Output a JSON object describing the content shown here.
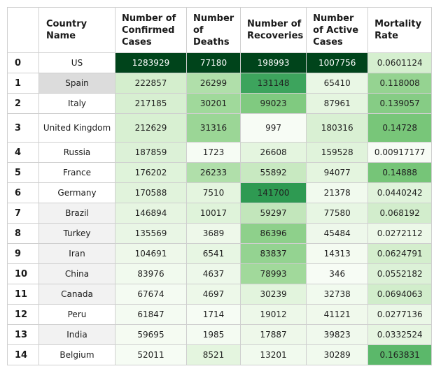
{
  "table": {
    "headers": {
      "index": "",
      "country": "Country Name",
      "confirmed": "Number of Confirmed Cases",
      "deaths": "Number of Deaths",
      "recoveries": "Number of Recoveries",
      "active": "Number of Active Cases",
      "mortality": "Mortality Rate"
    },
    "rows": [
      {
        "index": "0",
        "country": "US",
        "confirmed": "1283929",
        "deaths": "77180",
        "recoveries": "198993",
        "active": "1007756",
        "mortality": "0.0601124"
      },
      {
        "index": "1",
        "country": "Spain",
        "confirmed": "222857",
        "deaths": "26299",
        "recoveries": "131148",
        "active": "65410",
        "mortality": "0.118008"
      },
      {
        "index": "2",
        "country": "Italy",
        "confirmed": "217185",
        "deaths": "30201",
        "recoveries": "99023",
        "active": "87961",
        "mortality": "0.139057"
      },
      {
        "index": "3",
        "country": "United Kingdom",
        "confirmed": "212629",
        "deaths": "31316",
        "recoveries": "997",
        "active": "180316",
        "mortality": "0.14728"
      },
      {
        "index": "4",
        "country": "Russia",
        "confirmed": "187859",
        "deaths": "1723",
        "recoveries": "26608",
        "active": "159528",
        "mortality": "0.00917177"
      },
      {
        "index": "5",
        "country": "France",
        "confirmed": "176202",
        "deaths": "26233",
        "recoveries": "55892",
        "active": "94077",
        "mortality": "0.14888"
      },
      {
        "index": "6",
        "country": "Germany",
        "confirmed": "170588",
        "deaths": "7510",
        "recoveries": "141700",
        "active": "21378",
        "mortality": "0.0440242"
      },
      {
        "index": "7",
        "country": "Brazil",
        "confirmed": "146894",
        "deaths": "10017",
        "recoveries": "59297",
        "active": "77580",
        "mortality": "0.068192"
      },
      {
        "index": "8",
        "country": "Turkey",
        "confirmed": "135569",
        "deaths": "3689",
        "recoveries": "86396",
        "active": "45484",
        "mortality": "0.0272112"
      },
      {
        "index": "9",
        "country": "Iran",
        "confirmed": "104691",
        "deaths": "6541",
        "recoveries": "83837",
        "active": "14313",
        "mortality": "0.0624791"
      },
      {
        "index": "10",
        "country": "China",
        "confirmed": "83976",
        "deaths": "4637",
        "recoveries": "78993",
        "active": "346",
        "mortality": "0.0552182"
      },
      {
        "index": "11",
        "country": "Canada",
        "confirmed": "67674",
        "deaths": "4697",
        "recoveries": "30239",
        "active": "32738",
        "mortality": "0.0694063"
      },
      {
        "index": "12",
        "country": "Peru",
        "confirmed": "61847",
        "deaths": "1714",
        "recoveries": "19012",
        "active": "41121",
        "mortality": "0.0277136"
      },
      {
        "index": "13",
        "country": "India",
        "confirmed": "59695",
        "deaths": "1985",
        "recoveries": "17887",
        "active": "39823",
        "mortality": "0.0332524"
      },
      {
        "index": "14",
        "country": "Belgium",
        "confirmed": "52011",
        "deaths": "8521",
        "recoveries": "13201",
        "active": "30289",
        "mortality": "0.163831"
      }
    ]
  },
  "colors": {
    "country_cell_backgrounds": {
      "0": "#ffffff",
      "1": "#dcdcdc",
      "2": "#ffffff",
      "3": "#ffffff",
      "4": "#ffffff",
      "5": "#ffffff",
      "6": "#ffffff",
      "7": "#f2f2f2",
      "8": "#f2f2f2",
      "9": "#f2f2f2",
      "10": "#f2f2f2",
      "11": "#f2f2f2",
      "12": "#ffffff",
      "13": "#f2f2f2",
      "14": "#ffffff"
    },
    "heatmap": {
      "confirmed": [
        "#00441b",
        "#d4eecd",
        "#d7efd1",
        "#d8f0d2",
        "#dcf1d7",
        "#dff3da",
        "#e1f3dc",
        "#e6f5e1",
        "#e9f6e5",
        "#eef8ea",
        "#f1faee",
        "#f4fbf2",
        "#f4fbf2",
        "#f5fbf2",
        "#f6fcf4"
      ],
      "deaths": [
        "#00441b",
        "#b0dfaa",
        "#a0d99b",
        "#9bd696",
        "#f6fcf4",
        "#b0dfaa",
        "#e4f5df",
        "#dff3da",
        "#eef8ea",
        "#e7f6e3",
        "#edf8ea",
        "#edf8e9",
        "#f6fcf4",
        "#f4fbf2",
        "#e4f5df"
      ],
      "recoveries": [
        "#00441b",
        "#3da45d",
        "#80ca80",
        "#f7fcf5",
        "#e4f5df",
        "#c8e9c1",
        "#2e9a52",
        "#c2e6bb",
        "#8ed08b",
        "#94d391",
        "#a1d99b",
        "#e2f4dd",
        "#edf8e9",
        "#eef8ea",
        "#f1faee"
      ],
      "active": [
        "#00441b",
        "#e9f7e5",
        "#e5f5e0",
        "#d9f0d3",
        "#e0f3db",
        "#e4f5df",
        "#f1faee",
        "#e7f6e3",
        "#eef8eb",
        "#f4fbf1",
        "#f7fcf5",
        "#f1faee",
        "#f0f9ec",
        "#f0f9ed",
        "#f1faee"
      ],
      "mortality": [
        "#d5efcf",
        "#95d391",
        "#86cc85",
        "#78c679",
        "#f7fcf5",
        "#76c578",
        "#e0f3db",
        "#d2edcc",
        "#ecf8e8",
        "#d4eecd",
        "#dcf1d7",
        "#d1edcb",
        "#ebf7e7",
        "#e6f5e1",
        "#5bb86a"
      ]
    },
    "dark_text_cells": {
      "confirmed": [
        0
      ],
      "deaths": [
        0
      ],
      "recoveries": [
        0
      ],
      "active": [
        0
      ]
    }
  }
}
